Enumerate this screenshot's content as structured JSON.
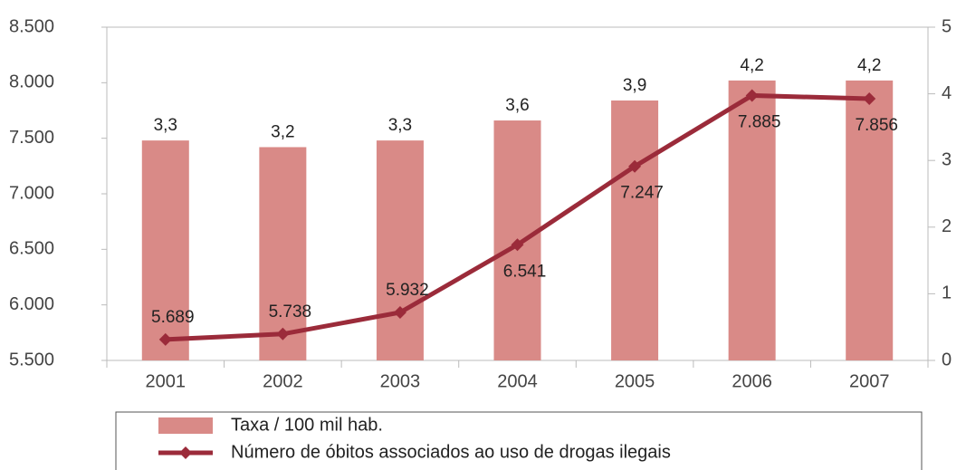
{
  "chart_data": {
    "type": "bar-line",
    "categories": [
      "2001",
      "2002",
      "2003",
      "2004",
      "2005",
      "2006",
      "2007"
    ],
    "series": [
      {
        "name": "Taxa / 100 mil hab.",
        "type": "bar",
        "axis": "y2",
        "color": "#d98a87",
        "values": [
          3.3,
          3.2,
          3.3,
          3.6,
          3.9,
          4.2,
          4.2
        ],
        "value_labels": [
          "3,3",
          "3,2",
          "3,3",
          "3,6",
          "3,9",
          "4,2",
          "4,2"
        ]
      },
      {
        "name": "Número de óbitos associados ao uso de drogas ilegais",
        "type": "line",
        "axis": "y",
        "color": "#9b2b3a",
        "values": [
          5689,
          5738,
          5932,
          6541,
          7247,
          7885,
          7856
        ],
        "value_labels": [
          "5.689",
          "5.738",
          "5.932",
          "6.541",
          "7.247",
          "7.885",
          "7.856"
        ]
      }
    ],
    "ylim": [
      5500,
      8500
    ],
    "yticks": [
      {
        "value": 5500,
        "label": "5.500"
      },
      {
        "value": 6000,
        "label": "6.000"
      },
      {
        "value": 6500,
        "label": "6.500"
      },
      {
        "value": 7000,
        "label": "7.000"
      },
      {
        "value": 7500,
        "label": "7.500"
      },
      {
        "value": 8000,
        "label": "8.000"
      },
      {
        "value": 8500,
        "label": "8.500"
      }
    ],
    "y2lim": [
      0,
      5
    ],
    "y2ticks": [
      0,
      1,
      2,
      3,
      4,
      5
    ],
    "legend": "bottom"
  }
}
